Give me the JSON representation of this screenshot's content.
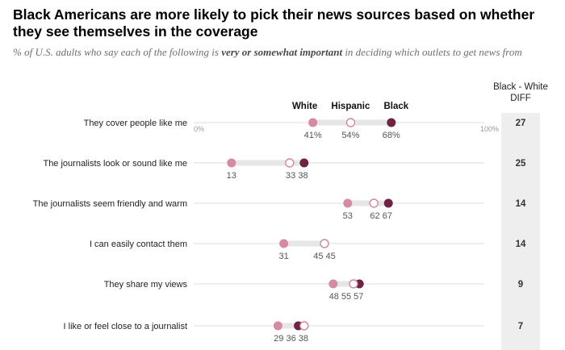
{
  "title": "Black Americans are more likely to pick their news sources based on whether they see themselves in the coverage",
  "subtitle": {
    "before": "% of U.S. adults who say each of the following is ",
    "emphasis": "very or somewhat important",
    "after": " in deciding which outlets to get news from"
  },
  "colors": {
    "white": "#d689a3",
    "hispanic_stroke": "#cf8aa1",
    "black": "#6e2244",
    "track": "#e6e6e6",
    "diff_panel": "#eeeeee",
    "text": "#222222",
    "label_gray": "#555555",
    "axis_gray": "#999999"
  },
  "chart_data": {
    "type": "dot-plot",
    "xlim": [
      0,
      100
    ],
    "axis_labels": {
      "min": "0%",
      "max": "100%"
    },
    "legend": [
      "White",
      "Hispanic",
      "Black"
    ],
    "diff_header": [
      "Black - White",
      "DIFF"
    ],
    "series": [
      {
        "name": "White"
      },
      {
        "name": "Hispanic"
      },
      {
        "name": "Black"
      }
    ],
    "categories": [
      {
        "label": "They cover people like me",
        "white": 41,
        "hispanic": 54,
        "black": 68,
        "diff": 27,
        "value_labels": [
          "41%",
          "54%",
          "68%"
        ]
      },
      {
        "label": "The journalists look or sound like me",
        "white": 13,
        "hispanic": 33,
        "black": 38,
        "diff": 25,
        "value_labels": [
          "13",
          "33 38"
        ]
      },
      {
        "label": "The journalists seem friendly and warm",
        "white": 53,
        "hispanic": 62,
        "black": 67,
        "diff": 14,
        "value_labels": [
          "53",
          "62 67"
        ]
      },
      {
        "label": "I can easily contact them",
        "white": 31,
        "hispanic": 45,
        "black": 45,
        "diff": 14,
        "value_labels": [
          "31",
          "45 45"
        ]
      },
      {
        "label": "They share my views",
        "white": 48,
        "hispanic": 55,
        "black": 57,
        "diff": 9,
        "value_labels": [
          "48 55 57"
        ]
      },
      {
        "label": "I like or feel close to a journalist",
        "white": 29,
        "hispanic": 38,
        "black": 36,
        "diff": 7,
        "value_labels": [
          "29 36 38"
        ]
      }
    ]
  }
}
